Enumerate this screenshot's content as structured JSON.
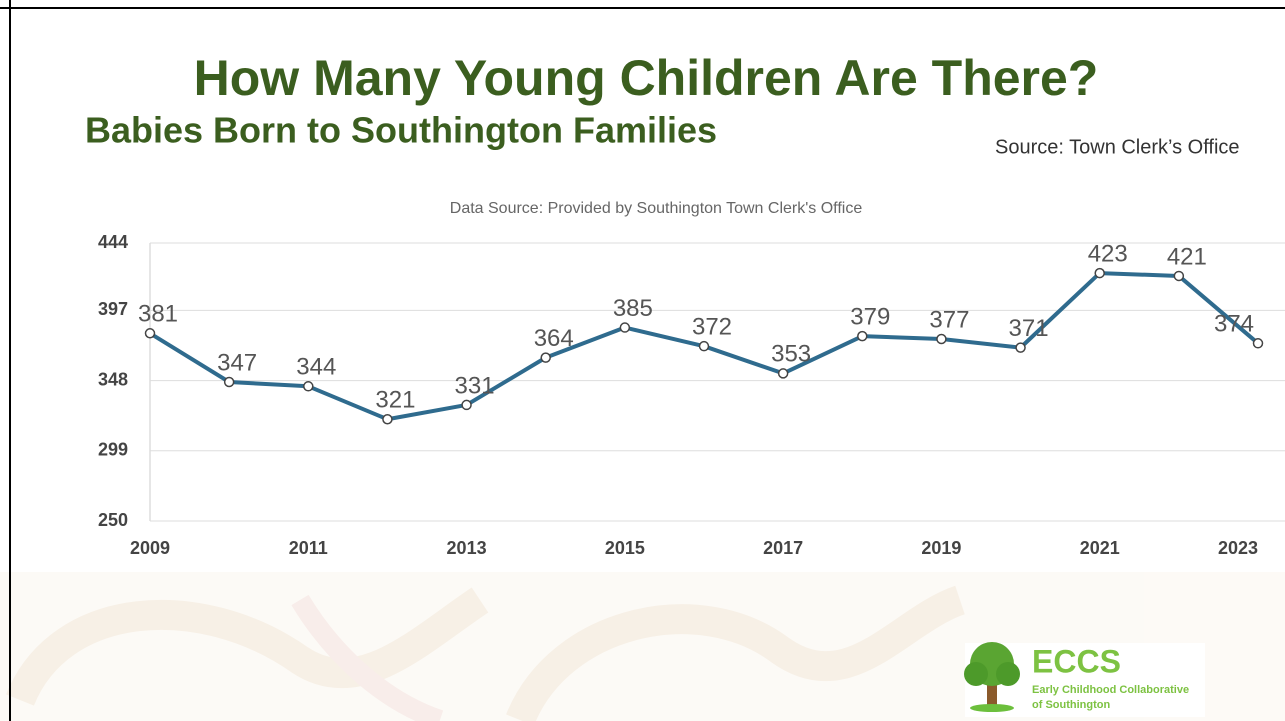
{
  "slide": {
    "title": "How Many Young Children Are There?",
    "subtitle": "Babies Born to Southington Families",
    "source": "Source: Town Clerk’s Office"
  },
  "logo": {
    "name": "ECCS",
    "line1": "Early Childhood Collaborative",
    "line2": "of Southington"
  },
  "chart_data": {
    "type": "line",
    "title": "Data Source: Provided by Southington Town Clerk's Office",
    "x": [
      2009,
      2010,
      2011,
      2012,
      2013,
      2014,
      2015,
      2016,
      2017,
      2018,
      2019,
      2020,
      2021,
      2022,
      2023
    ],
    "values": [
      381,
      347,
      344,
      321,
      331,
      364,
      385,
      372,
      353,
      379,
      377,
      371,
      423,
      421,
      374
    ],
    "color": "#2f6b8e",
    "xlim": [
      2009,
      2023
    ],
    "xticks": [
      2009,
      2011,
      2013,
      2015,
      2017,
      2019,
      2021,
      2023
    ],
    "ylim": [
      250,
      444
    ],
    "yticks": [
      250,
      299,
      348,
      397,
      444
    ],
    "grid": true
  }
}
